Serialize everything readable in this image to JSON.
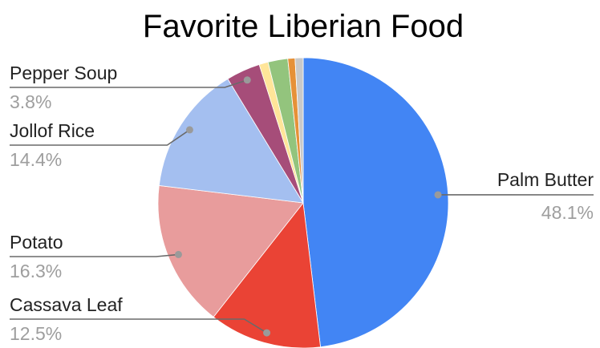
{
  "chart_data": {
    "type": "pie",
    "title": "Favorite Liberian Food",
    "slices": [
      {
        "label": "Palm Butter",
        "value": 48.1,
        "pct_label": "48.1%",
        "color": "#4285f4",
        "labelled": true
      },
      {
        "label": "Cassava Leaf",
        "value": 12.5,
        "pct_label": "12.5%",
        "color": "#ea4335",
        "labelled": true
      },
      {
        "label": "Potato",
        "value": 16.3,
        "pct_label": "16.3%",
        "color": "#e89c9c",
        "labelled": true
      },
      {
        "label": "Jollof Rice",
        "value": 14.4,
        "pct_label": "14.4%",
        "color": "#a4bff0",
        "labelled": true
      },
      {
        "label": "Pepper Soup",
        "value": 3.8,
        "pct_label": "3.8%",
        "color": "#a64d79",
        "labelled": true
      },
      {
        "label": "",
        "value": 1.0,
        "pct_label": "",
        "color": "#ffe599",
        "labelled": false
      },
      {
        "label": "",
        "value": 2.2,
        "pct_label": "",
        "color": "#93c47d",
        "labelled": false
      },
      {
        "label": "",
        "value": 0.8,
        "pct_label": "",
        "color": "#e69138",
        "labelled": false
      },
      {
        "label": "",
        "value": 0.9,
        "pct_label": "",
        "color": "#c9c9c9",
        "labelled": false
      }
    ],
    "legend": "none",
    "label_style": "outside-with-leader-lines"
  }
}
